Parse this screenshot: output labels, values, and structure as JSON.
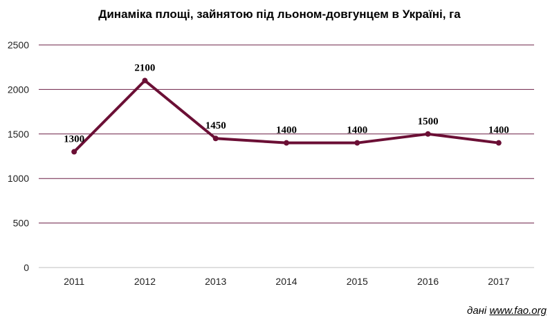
{
  "chart_data": {
    "type": "line",
    "title": "Динаміка площі, зайнятою під льоном-довгунцем в Україні, га",
    "categories": [
      "2011",
      "2012",
      "2013",
      "2014",
      "2015",
      "2016",
      "2017"
    ],
    "series": [
      {
        "values": [
          1300,
          2100,
          1450,
          1400,
          1400,
          1500,
          1400
        ],
        "color": "#6b0f35"
      }
    ],
    "data_labels": [
      "1300",
      "2100",
      "1450",
      "1400",
      "1400",
      "1500",
      "1400"
    ],
    "ylim": [
      0,
      2500
    ],
    "y_ticks": [
      0,
      500,
      1000,
      1500,
      2000,
      2500
    ],
    "grid": true,
    "gridline_color": "#6b1f45",
    "legend": "none"
  },
  "source": {
    "prefix": "дані",
    "link_text": "www.fao.org"
  }
}
